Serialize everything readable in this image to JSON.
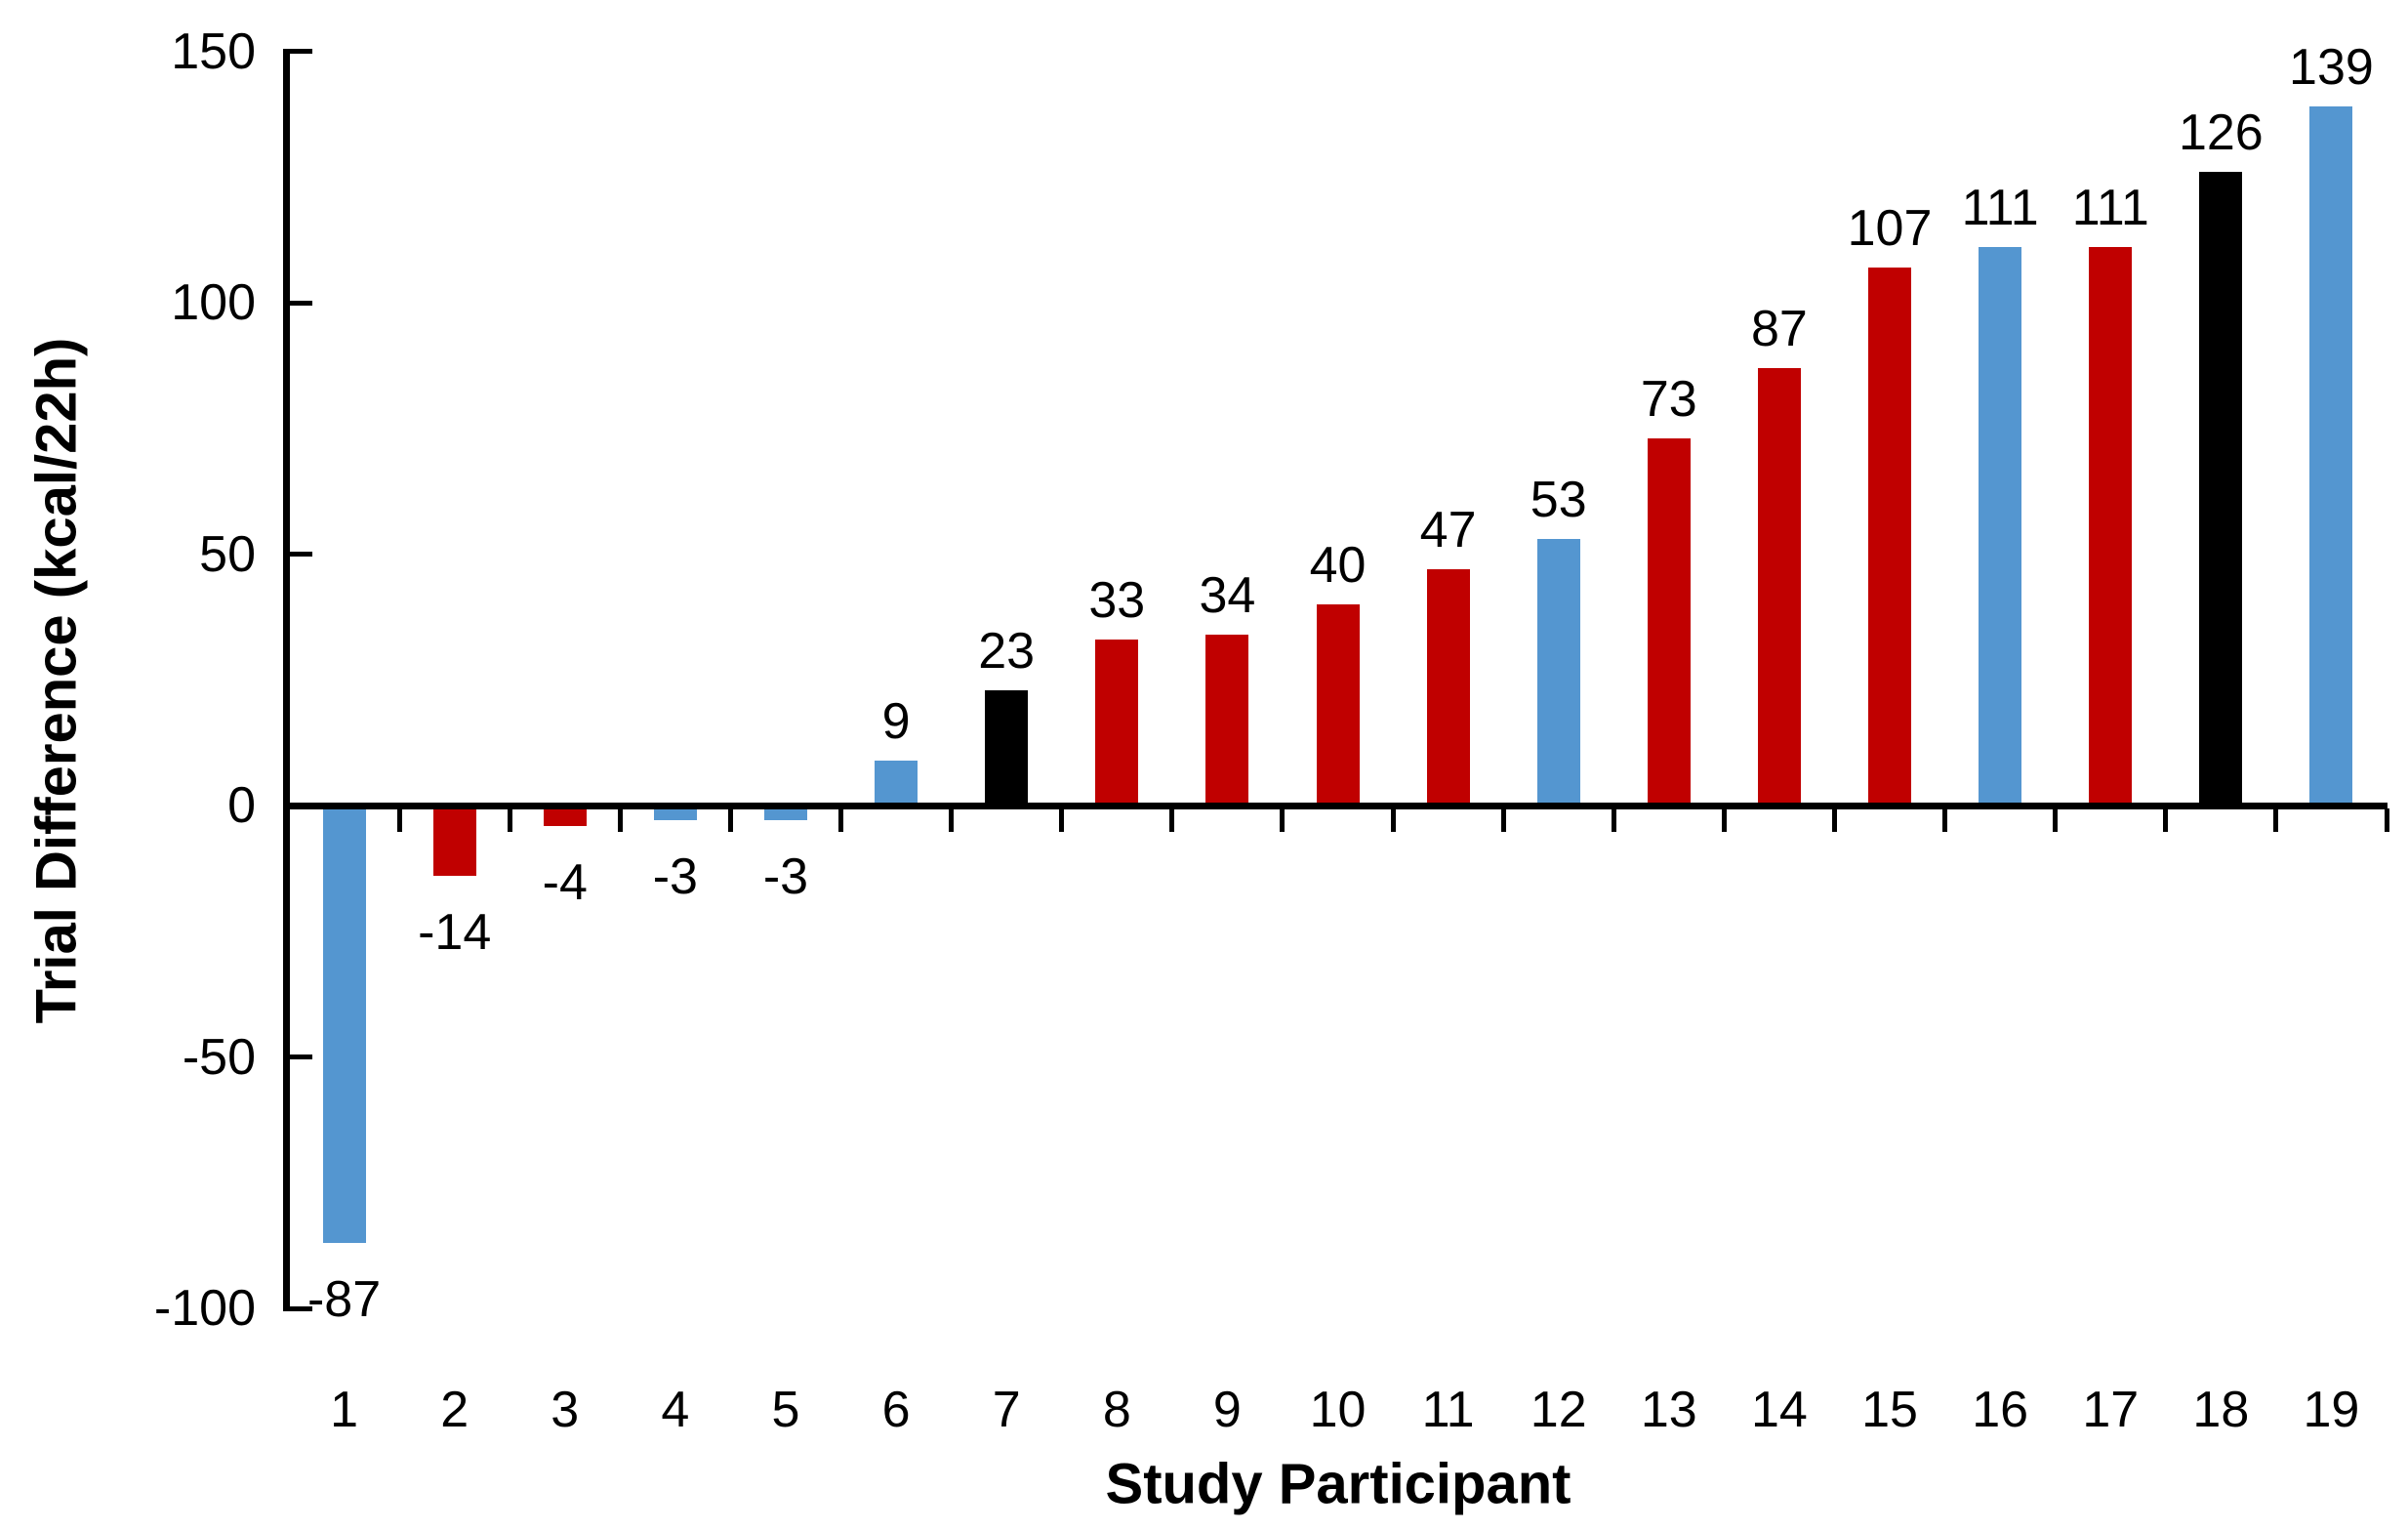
{
  "chart_data": {
    "type": "bar",
    "title": "",
    "xlabel": "Study Participant",
    "ylabel": "Trial Difference (kcal/22h)",
    "categories": [
      "1",
      "2",
      "3",
      "4",
      "5",
      "6",
      "7",
      "8",
      "9",
      "10",
      "11",
      "12",
      "13",
      "14",
      "15",
      "16",
      "17",
      "18",
      "19"
    ],
    "values": [
      -87,
      -14,
      -4,
      -3,
      -3,
      9,
      23,
      33,
      34,
      40,
      47,
      53,
      73,
      87,
      107,
      111,
      111,
      126,
      139
    ],
    "data_labels": [
      "-87",
      "-14",
      "-4",
      "-3",
      "-3",
      "9",
      "23",
      "33",
      "34",
      "40",
      "47",
      "53",
      "73",
      "87",
      "107",
      "111",
      "111",
      "126",
      "139"
    ],
    "bar_color_names": [
      "blue",
      "red",
      "red",
      "blue",
      "blue",
      "blue",
      "black",
      "red",
      "red",
      "red",
      "red",
      "blue",
      "red",
      "red",
      "red",
      "blue",
      "red",
      "black",
      "blue"
    ],
    "palette": {
      "blue": "#5496D0",
      "red": "#C00000",
      "black": "#000000"
    },
    "axis_color": "#000000",
    "yticks": [
      150,
      100,
      50,
      0,
      -50,
      -100
    ],
    "ytick_labels": [
      "150",
      "100",
      "50",
      "0",
      "-50",
      "-100"
    ],
    "ylim": [
      -100,
      150
    ],
    "grid": false,
    "legend": null
  }
}
